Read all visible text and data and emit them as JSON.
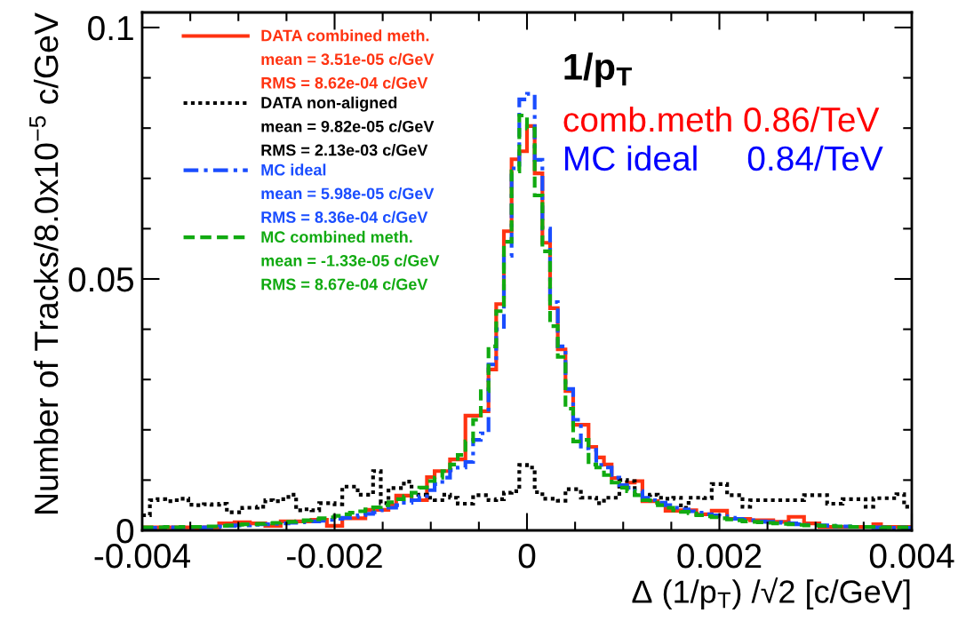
{
  "chart_data": {
    "type": "histogram",
    "xlabel": "Δ (1/p$_{T}$) /√2 [c/GeV]",
    "ylabel": "Number of Tracks/8.0x10$^{−5}$ c/GeV",
    "bins": [
      -0.004,
      -0.00392,
      -0.00384,
      -0.00376,
      -0.00368,
      -0.0036,
      -0.00352,
      -0.00344,
      -0.00336,
      -0.00328,
      -0.0032,
      -0.00312,
      -0.00304,
      -0.00296,
      -0.00288,
      -0.0028,
      -0.00272,
      -0.00264,
      -0.00256,
      -0.00248,
      -0.0024,
      -0.00232,
      -0.00224,
      -0.00216,
      -0.00208,
      -0.002,
      -0.00192,
      -0.00184,
      -0.00176,
      -0.00168,
      -0.0016,
      -0.00152,
      -0.00144,
      -0.00136,
      -0.00128,
      -0.0012,
      -0.00112,
      -0.00104,
      -0.00096,
      -0.00088,
      -0.0008,
      -0.00072,
      -0.00064,
      -0.00056,
      -0.00048,
      -0.0004,
      -0.00032,
      -0.00024,
      -0.00016,
      -8e-05,
      0,
      8e-05,
      0.00016,
      0.00024,
      0.00032,
      0.0004,
      0.00048,
      0.00056,
      0.00064,
      0.00072,
      0.0008,
      0.00088,
      0.00096,
      0.00104,
      0.00112,
      0.0012,
      0.00128,
      0.00136,
      0.00144,
      0.00152,
      0.0016,
      0.00168,
      0.00176,
      0.00184,
      0.00192,
      0.002,
      0.00208,
      0.00216,
      0.00224,
      0.00232,
      0.0024,
      0.00248,
      0.00256,
      0.00264,
      0.00272,
      0.0028,
      0.00288,
      0.00296,
      0.00304,
      0.00312,
      0.0032,
      0.00328,
      0.00336,
      0.00344,
      0.00352,
      0.0036,
      0.00368,
      0.00376,
      0.00384,
      0.00392,
      0.004
    ],
    "series": [
      {
        "name": "DATA combined meth.\nmean = 3.51e-05 c/GeV\nRMS = 8.62e-04 c/GeV",
        "color": "#ff3311",
        "line_style": "solid",
        "values": [
          0.0006,
          0.0006,
          0.0006,
          0.0006,
          0.0006,
          0.0006,
          0.0006,
          0.0003,
          0.0006,
          0.0006,
          0.0014,
          0.0014,
          0.0016,
          0.0016,
          0.0014,
          0.0014,
          0.0009,
          0.0009,
          0.0018,
          0.0018,
          0.0018,
          0.0018,
          0.0021,
          0.0021,
          0.0009,
          0.0009,
          0.0024,
          0.0024,
          0.0024,
          0.0041,
          0.0041,
          0.0041,
          0.005,
          0.0069,
          0.0069,
          0.006,
          0.006,
          0.0106,
          0.0118,
          0.0118,
          0.0141,
          0.0141,
          0.0228,
          0.0228,
          0.0237,
          0.032,
          0.045,
          0.0595,
          0.0738,
          0.0754,
          0.0804,
          0.071,
          0.0572,
          0.0442,
          0.036,
          0.0277,
          0.021,
          0.021,
          0.0166,
          0.0145,
          0.0131,
          0.0104,
          0.0088,
          0.0095,
          0.0098,
          0.0058,
          0.0058,
          0.0053,
          0.0039,
          0.0039,
          0.004,
          0.004,
          0.0032,
          0.0032,
          0.0039,
          0.0039,
          0.0023,
          0.0023,
          0.0023,
          0.002,
          0.002,
          0.002,
          0.0017,
          0.0017,
          0.0027,
          0.0027,
          0.0014,
          0.0014,
          0.0007,
          0.0007,
          0.0007,
          0.0007,
          0.0007,
          0.0007,
          0.0007,
          0.0012,
          0.0007,
          0.0007,
          0.0007,
          0.0007
        ]
      },
      {
        "name": "DATA non-aligned\nmean = 9.82e-05 c/GeV\nRMS = 2.13e-03 c/GeV",
        "color": "#000000",
        "line_style": "dotted",
        "values": [
          0.003,
          0.006,
          0.0062,
          0.0058,
          0.006,
          0.0063,
          0.0051,
          0.005,
          0.0052,
          0.0051,
          0.0053,
          0.0036,
          0.0036,
          0.0045,
          0.0045,
          0.0047,
          0.006,
          0.0058,
          0.0062,
          0.0071,
          0.004,
          0.0042,
          0.004,
          0.0054,
          0.0054,
          0.0052,
          0.0087,
          0.0087,
          0.0071,
          0.0071,
          0.0118,
          0.0054,
          0.0084,
          0.0084,
          0.0097,
          0.0071,
          0.0071,
          0.0065,
          0.006,
          0.0071,
          0.0065,
          0.0053,
          0.0053,
          0.007,
          0.007,
          0.006,
          0.0062,
          0.0075,
          0.0078,
          0.013,
          0.0125,
          0.0076,
          0.0063,
          0.0063,
          0.0059,
          0.0082,
          0.0082,
          0.0065,
          0.0065,
          0.0054,
          0.0065,
          0.0065,
          0.01,
          0.0098,
          0.0071,
          0.007,
          0.0071,
          0.0065,
          0.0063,
          0.0065,
          0.0045,
          0.0065,
          0.0065,
          0.0064,
          0.0092,
          0.0092,
          0.007,
          0.007,
          0.0047,
          0.006,
          0.006,
          0.006,
          0.006,
          0.006,
          0.006,
          0.006,
          0.007,
          0.007,
          0.007,
          0.0053,
          0.0053,
          0.0062,
          0.0062,
          0.0062,
          0.0047,
          0.0064,
          0.0064,
          0.0064,
          0.0072,
          0.0047
        ]
      },
      {
        "name": "MC ideal\nmean = 5.98e-05 c/GeV\nRMS = 8.36e-04 c/GeV",
        "color": "#1a4dff",
        "line_style": "dashdot",
        "values": [
          0.0005,
          0.0005,
          0.0006,
          0.0006,
          0.0005,
          0.0006,
          0.0006,
          0.0005,
          0.0006,
          0.0007,
          0.0008,
          0.0009,
          0.001,
          0.001,
          0.0011,
          0.0012,
          0.0012,
          0.0013,
          0.0014,
          0.0015,
          0.0016,
          0.0017,
          0.0018,
          0.0019,
          0.0021,
          0.0023,
          0.0025,
          0.0027,
          0.003,
          0.0033,
          0.0036,
          0.004,
          0.0045,
          0.005,
          0.0055,
          0.006,
          0.0068,
          0.008,
          0.0092,
          0.0105,
          0.012,
          0.0125,
          0.0136,
          0.018,
          0.0193,
          0.033,
          0.04,
          0.0546,
          0.072,
          0.0857,
          0.0868,
          0.0737,
          0.06,
          0.0454,
          0.0366,
          0.0281,
          0.022,
          0.0163,
          0.016,
          0.013,
          0.0125,
          0.0105,
          0.009,
          0.0085,
          0.0078,
          0.0065,
          0.006,
          0.0055,
          0.005,
          0.0045,
          0.0042,
          0.0038,
          0.0035,
          0.0032,
          0.003,
          0.0028,
          0.0025,
          0.0023,
          0.0021,
          0.002,
          0.0018,
          0.0017,
          0.0016,
          0.0015,
          0.0014,
          0.0012,
          0.0011,
          0.001,
          0.001,
          0.0009,
          0.0008,
          0.0008,
          0.0007,
          0.0007,
          0.0007,
          0.0006,
          0.0006,
          0.0005,
          0.0006,
          0.0005
        ]
      },
      {
        "name": "MC combined meth.\nmean = -1.33e-05 c/GeV\nRMS = 8.67e-04 c/GeV",
        "color": "#11aa11",
        "line_style": "dashed",
        "values": [
          0.0006,
          0.0006,
          0.0006,
          0.0007,
          0.0006,
          0.0007,
          0.0007,
          0.0007,
          0.0008,
          0.0008,
          0.0009,
          0.001,
          0.0011,
          0.0012,
          0.0012,
          0.0013,
          0.0014,
          0.0015,
          0.0016,
          0.0017,
          0.0018,
          0.002,
          0.0022,
          0.0024,
          0.0026,
          0.0029,
          0.0032,
          0.0035,
          0.0038,
          0.0042,
          0.0046,
          0.005,
          0.0056,
          0.0062,
          0.0068,
          0.0075,
          0.0085,
          0.0098,
          0.0105,
          0.0118,
          0.0131,
          0.015,
          0.0177,
          0.022,
          0.0277,
          0.0366,
          0.0436,
          0.0574,
          0.0714,
          0.0825,
          0.0799,
          0.0666,
          0.0555,
          0.0406,
          0.0345,
          0.0242,
          0.0177,
          0.018,
          0.0131,
          0.0125,
          0.011,
          0.0095,
          0.0085,
          0.0078,
          0.007,
          0.006,
          0.0055,
          0.005,
          0.0045,
          0.004,
          0.0037,
          0.0034,
          0.003,
          0.0028,
          0.0026,
          0.0024,
          0.0022,
          0.002,
          0.0018,
          0.0017,
          0.0016,
          0.0015,
          0.0014,
          0.0013,
          0.0012,
          0.0011,
          0.001,
          0.001,
          0.0009,
          0.0009,
          0.0008,
          0.0008,
          0.0007,
          0.0007,
          0.0007,
          0.0007,
          0.0006,
          0.0006,
          0.0006,
          0.0006
        ]
      }
    ],
    "annotations": [
      "1/p$_{T}$",
      "comb.meth 0.86/TeV",
      "MC ideal     0.84/TeV"
    ],
    "xlim": [
      -0.004,
      0.004
    ],
    "xticks": [
      -0.004,
      {
        "value": -0.0035,
        "label": null
      },
      {
        "value": -0.003,
        "label": null
      },
      {
        "value": -0.0025,
        "label": null
      },
      -0.002,
      {
        "value": -0.0015,
        "label": null
      },
      {
        "value": -0.001,
        "label": null
      },
      {
        "value": -0.0005,
        "label": null
      },
      0,
      {
        "value": 0.0005,
        "label": null
      },
      {
        "value": 0.001,
        "label": null
      },
      {
        "value": 0.0015,
        "label": null
      },
      0.002,
      {
        "value": 0.0025,
        "label": null
      },
      {
        "value": 0.003,
        "label": null
      },
      {
        "value": 0.0035,
        "label": null
      },
      0.004
    ],
    "ylim": [
      0,
      0.103
    ],
    "yticks": [
      0,
      {
        "value": 0.01,
        "label": null
      },
      {
        "value": 0.02,
        "label": null
      },
      {
        "value": 0.03,
        "label": null
      },
      {
        "value": 0.04,
        "label": null
      },
      0.05,
      {
        "value": 0.06,
        "label": null
      },
      {
        "value": 0.07,
        "label": null
      },
      {
        "value": 0.08,
        "label": null
      },
      {
        "value": 0.09,
        "label": null
      },
      0.1
    ],
    "legend": "top left",
    "grid": false
  }
}
